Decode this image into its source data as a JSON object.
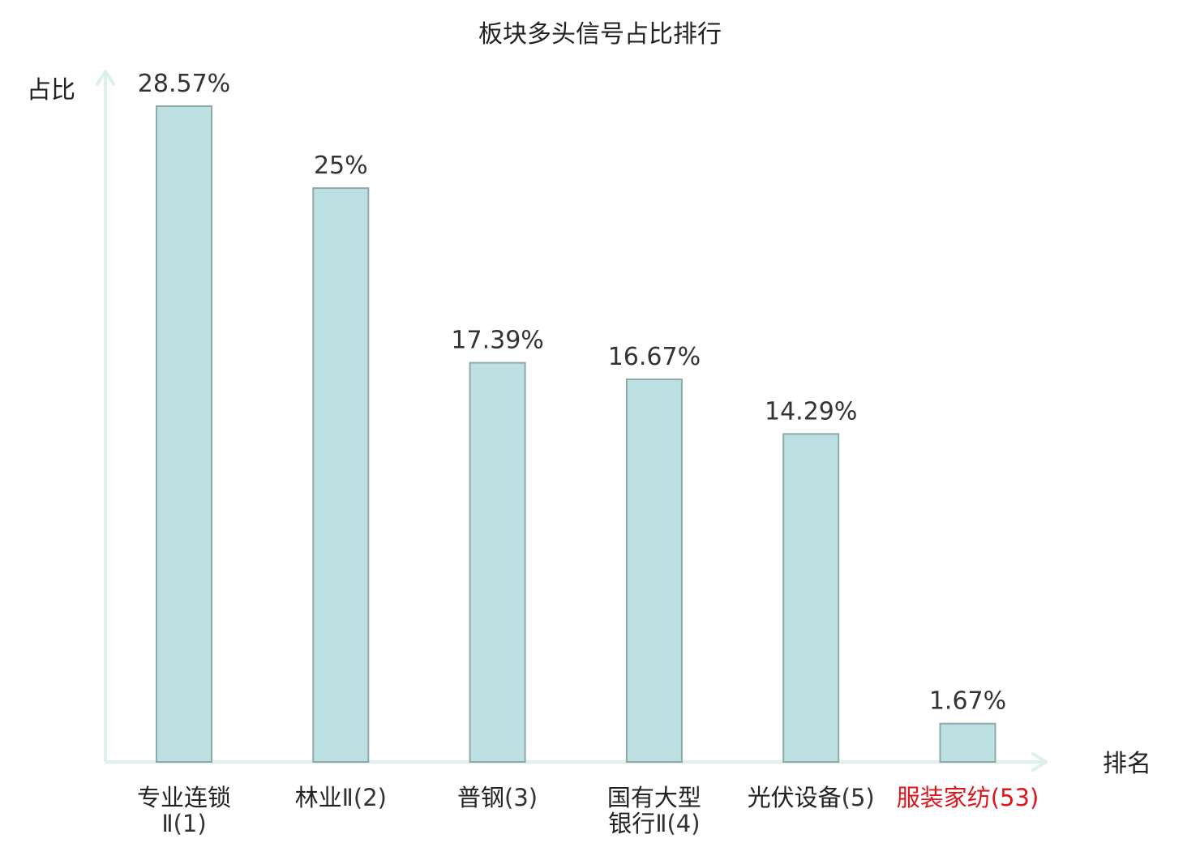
{
  "chart_data": {
    "type": "bar",
    "title": "板块多头信号占比排行",
    "ylabel": "占比",
    "xlabel": "排名",
    "ylim": [
      0,
      30
    ],
    "grid": false,
    "legend": "none",
    "categories": [
      {
        "lines": [
          {
            "main": "专业连锁",
            "suffix": ""
          },
          {
            "main": "",
            "suffix": "Ⅱ(1)"
          }
        ],
        "highlight": false
      },
      {
        "lines": [
          {
            "main": "林业",
            "suffix": "Ⅱ(2)"
          }
        ],
        "highlight": false
      },
      {
        "lines": [
          {
            "main": "普钢",
            "suffix": "(3)"
          }
        ],
        "highlight": false
      },
      {
        "lines": [
          {
            "main": "国有大型",
            "suffix": ""
          },
          {
            "main": "银行",
            "suffix": "Ⅱ(4)"
          }
        ],
        "highlight": false
      },
      {
        "lines": [
          {
            "main": "光伏设备",
            "suffix": "(5)"
          }
        ],
        "highlight": false
      },
      {
        "lines": [
          {
            "main": "服装家纺",
            "suffix": "(53)"
          }
        ],
        "highlight": true
      }
    ],
    "values": [
      28.57,
      25,
      17.39,
      16.67,
      14.29,
      1.67
    ],
    "value_labels": [
      "28.57%",
      "25%",
      "17.39%",
      "16.67%",
      "14.29%",
      "1.67%"
    ]
  },
  "colors": {
    "bar_fill": "#bde0e2",
    "bar_stroke": "#8fa9aa",
    "axis": "#dcf0ee",
    "label_normal": "#222222",
    "suffix_normal": "#333333",
    "highlight": "#e0151b"
  }
}
